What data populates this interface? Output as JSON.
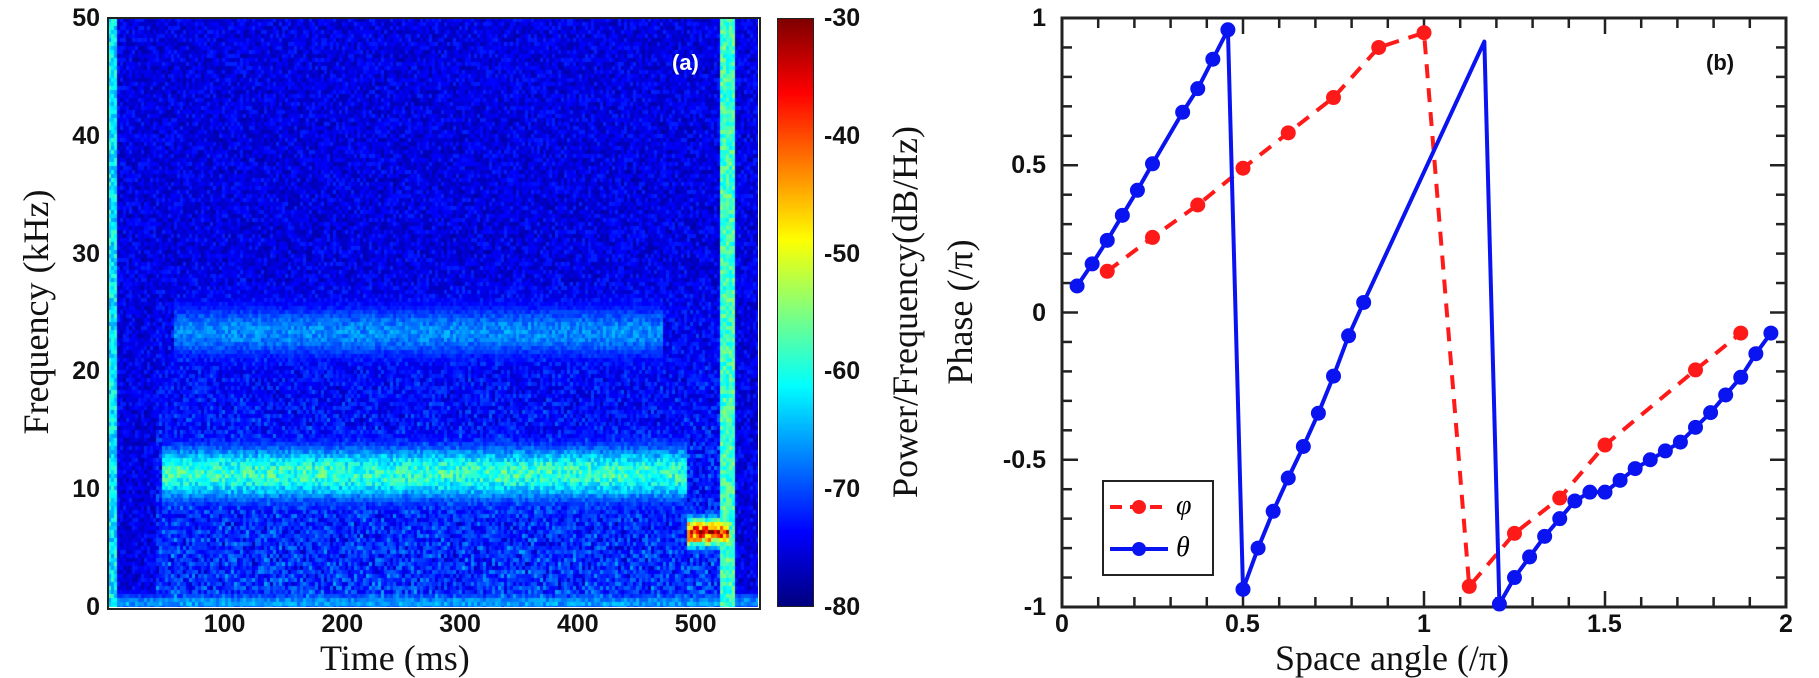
{
  "chart_data": [
    {
      "type": "heatmap",
      "panel_label": "(a)",
      "xlabel": "Time (ms)",
      "ylabel": "Frequency (kHz)",
      "xlim": [
        0,
        552
      ],
      "ylim": [
        0,
        50
      ],
      "xticks": [
        100,
        200,
        300,
        400,
        500
      ],
      "yticks": [
        0,
        10,
        20,
        30,
        40,
        50
      ],
      "colorbar": {
        "label": "Power/Frequency(dB/Hz)",
        "clim": [
          -80,
          -30
        ],
        "ticks": [
          -30,
          -40,
          -50,
          -60,
          -70,
          -80
        ],
        "colormap": "jet"
      },
      "background_level_db": -78,
      "features": [
        {
          "kind": "band",
          "freq_khz": 11.5,
          "width_khz": 3,
          "t_ms": [
            45,
            490
          ],
          "level_db": -57
        },
        {
          "kind": "band",
          "freq_khz": 23.5,
          "width_khz": 3,
          "t_ms": [
            55,
            470
          ],
          "level_db": -66
        },
        {
          "kind": "band",
          "freq_khz": 6.5,
          "width_khz": 1.5,
          "t_ms": [
            490,
            527
          ],
          "level_db": -35
        },
        {
          "kind": "broadband",
          "t_ms": [
            518,
            530
          ],
          "freq_khz": [
            0,
            50
          ],
          "level_db": -58
        },
        {
          "kind": "broadband",
          "t_ms": [
            0,
            6
          ],
          "freq_khz": [
            0,
            50
          ],
          "level_db": -62
        },
        {
          "kind": "band",
          "freq_khz": 0.5,
          "width_khz": 1,
          "t_ms": [
            0,
            552
          ],
          "level_db": -65
        }
      ]
    },
    {
      "type": "line",
      "panel_label": "(b)",
      "xlabel": "Space angle (/π)",
      "ylabel": "Phase (/π)",
      "xlim": [
        0,
        2
      ],
      "ylim": [
        -1,
        1
      ],
      "xticks": [
        "0",
        "0.5",
        "1",
        "1.5",
        "2"
      ],
      "yticks": [
        "1",
        "0.5",
        "0",
        "-0.5",
        "-1"
      ],
      "legend_position": "bottom-left",
      "series": [
        {
          "name": "φ",
          "color": "#ff1a1a",
          "style": "dashed",
          "marker": "circle",
          "x": [
            0.125,
            0.25,
            0.375,
            0.5,
            0.625,
            0.75,
            0.875,
            1.0,
            1.125,
            1.25,
            1.375,
            1.5,
            1.75,
            1.875
          ],
          "y": [
            0.14,
            0.255,
            0.365,
            0.49,
            0.61,
            0.73,
            0.9,
            0.95,
            -0.93,
            -0.75,
            -0.63,
            -0.45,
            -0.195,
            -0.07
          ]
        },
        {
          "name": "θ",
          "color": "#0a14f0",
          "style": "solid",
          "marker": "circle",
          "x": [
            0.0417,
            0.0833,
            0.125,
            0.1667,
            0.2083,
            0.25,
            0.3333,
            0.375,
            0.4167,
            0.4583,
            0.5,
            0.5417,
            0.5833,
            0.625,
            0.6667,
            0.7083,
            0.75,
            0.7917,
            0.8333,
            1.1667,
            1.2083,
            1.25,
            1.2917,
            1.3333,
            1.375,
            1.4167,
            1.4583,
            1.5,
            1.5417,
            1.5833,
            1.625,
            1.6667,
            1.7083,
            1.75,
            1.7917,
            1.8333,
            1.875,
            1.9167,
            1.9583
          ],
          "y": [
            0.09,
            0.165,
            0.245,
            0.33,
            0.415,
            0.505,
            0.68,
            0.76,
            0.86,
            0.96,
            -0.94,
            -0.8,
            -0.675,
            -0.562,
            -0.455,
            -0.342,
            -0.216,
            -0.079,
            0.034,
            0.92,
            -0.99,
            -0.9,
            -0.83,
            -0.76,
            -0.7,
            -0.64,
            -0.61,
            -0.61,
            -0.57,
            -0.53,
            -0.5,
            -0.47,
            -0.44,
            -0.39,
            -0.34,
            -0.28,
            -0.22,
            -0.14,
            -0.07
          ],
          "markers_hidden_indices": [
            19
          ]
        }
      ]
    }
  ]
}
